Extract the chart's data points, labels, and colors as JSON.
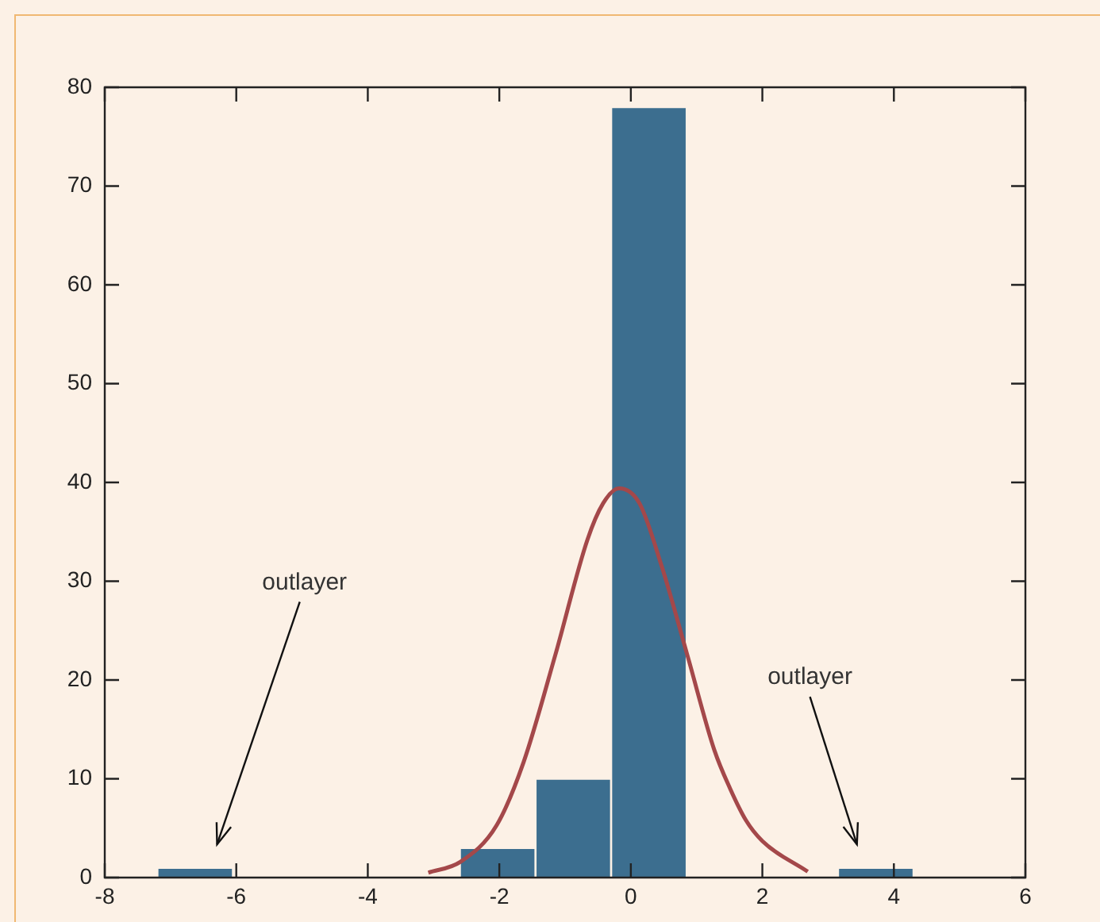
{
  "chart_data": {
    "type": "histogram",
    "color": "#3c6e8f",
    "bins": [
      -7.2,
      -6.05,
      -4.9,
      -3.75,
      -2.6,
      -1.45,
      -0.3,
      0.85,
      2.0,
      3.15,
      4.3
    ],
    "values": [
      1,
      0,
      0,
      0,
      3,
      10,
      78,
      0,
      0,
      1
    ],
    "series": [
      {
        "type": "line",
        "color": "#a4484a",
        "x": [
          -3.08,
          -2.59,
          -2.04,
          -1.63,
          -1.15,
          -0.66,
          -0.42,
          -0.18,
          0.13,
          0.47,
          0.86,
          1.27,
          1.51,
          1.75,
          2.0,
          2.69
        ],
        "values": [
          0.5,
          1.6,
          5.3,
          11.7,
          22.5,
          34.2,
          37.9,
          39.4,
          37.9,
          31.5,
          22.5,
          12.9,
          9.0,
          5.8,
          3.7,
          0.6
        ]
      }
    ],
    "xlim": [
      -8,
      6
    ],
    "xticks": [
      -8,
      -6,
      -4,
      -2,
      0,
      2,
      4,
      6
    ],
    "ylim": [
      0,
      80
    ],
    "yticks": [
      0,
      10,
      20,
      30,
      40,
      50,
      60,
      70,
      80
    ],
    "grid": false,
    "legend": false,
    "marker": "none",
    "annotations": [
      "outlayer",
      "outlayer"
    ]
  }
}
